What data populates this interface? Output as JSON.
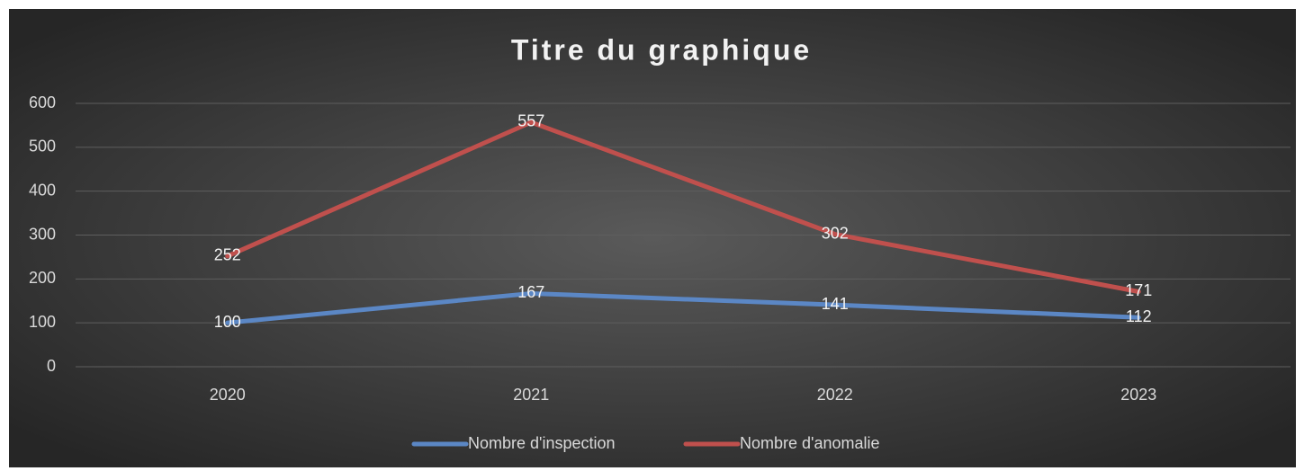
{
  "chart_data": {
    "type": "line",
    "title": "Titre du graphique",
    "categories": [
      "2020",
      "2021",
      "2022",
      "2023"
    ],
    "series": [
      {
        "name": "Nombre d'inspection",
        "color": "#5b87c5",
        "values": [
          100,
          167,
          141,
          112
        ]
      },
      {
        "name": "Nombre d'anomalie",
        "color": "#c0504d",
        "values": [
          252,
          557,
          302,
          171
        ]
      }
    ],
    "ylim": [
      0,
      600
    ],
    "yticks": [
      0,
      100,
      200,
      300,
      400,
      500,
      600
    ],
    "grid": true,
    "legend": "bottom"
  }
}
